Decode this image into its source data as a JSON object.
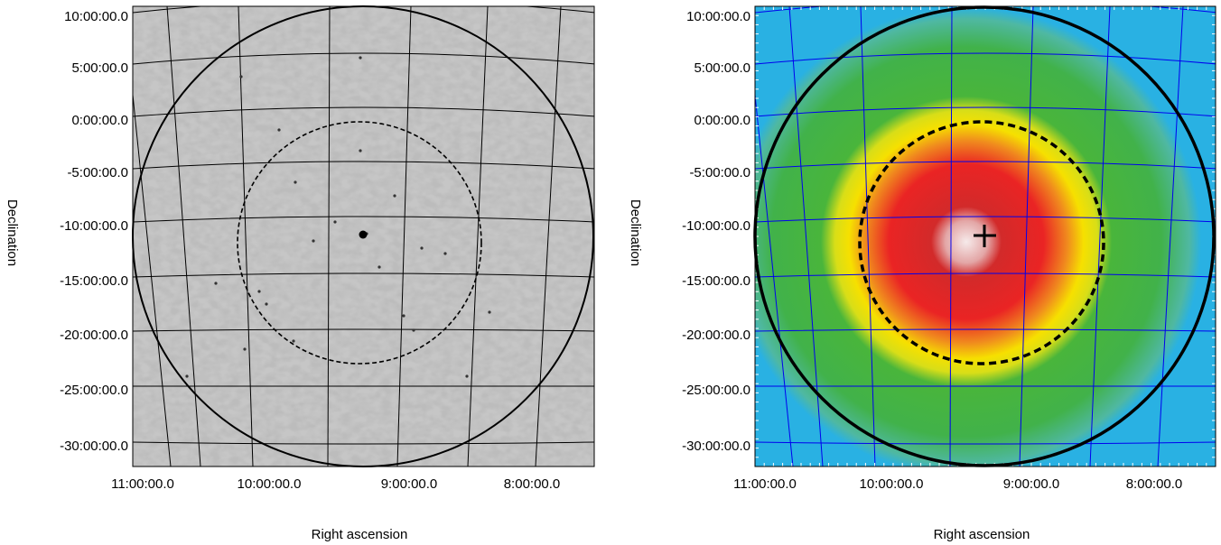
{
  "chart_data": [
    {
      "type": "heatmap",
      "name": "left-panel",
      "colormap": "greyscale",
      "grid_color": "#000000",
      "xlabel": "Right ascension",
      "ylabel": "Declination",
      "x_tick_labels": [
        "11:00:00.0",
        "10:00:00.0",
        "9:00:00.0",
        "8:00:00.0"
      ],
      "y_tick_labels": [
        "10:00:00.0",
        "5:00:00.0",
        "0:00:00.0",
        "-5:00:00.0",
        "-10:00:00.0",
        "-15:00:00.0",
        "-20:00:00.0",
        "-25:00:00.0",
        "-30:00:00.0"
      ],
      "circles": [
        {
          "style": "solid",
          "radius_rel": 1.0
        },
        {
          "style": "dashed",
          "radius_rel": 0.53
        }
      ],
      "marker": {
        "type": "dot",
        "ra": "9:14:00",
        "dec": "-11:20:00"
      }
    },
    {
      "type": "heatmap",
      "name": "right-panel",
      "colormap": "blue-green-yellow-red-white",
      "grid_color": "#0000ff",
      "xlabel": "Right ascension",
      "ylabel": "Declination",
      "x_tick_labels": [
        "11:00:00.0",
        "10:00:00.0",
        "9:00:00.0",
        "8:00:00.0"
      ],
      "y_tick_labels": [
        "10:00:00.0",
        "5:00:00.0",
        "0:00:00.0",
        "-5:00:00.0",
        "-10:00:00.0",
        "-15:00:00.0",
        "-20:00:00.0",
        "-25:00:00.0",
        "-30:00:00.0"
      ],
      "circles": [
        {
          "style": "solid",
          "radius_rel": 1.0
        },
        {
          "style": "dashed",
          "radius_rel": 0.53
        }
      ],
      "marker": {
        "type": "cross",
        "ra": "9:10:00",
        "dec": "-11:20:00"
      }
    }
  ]
}
